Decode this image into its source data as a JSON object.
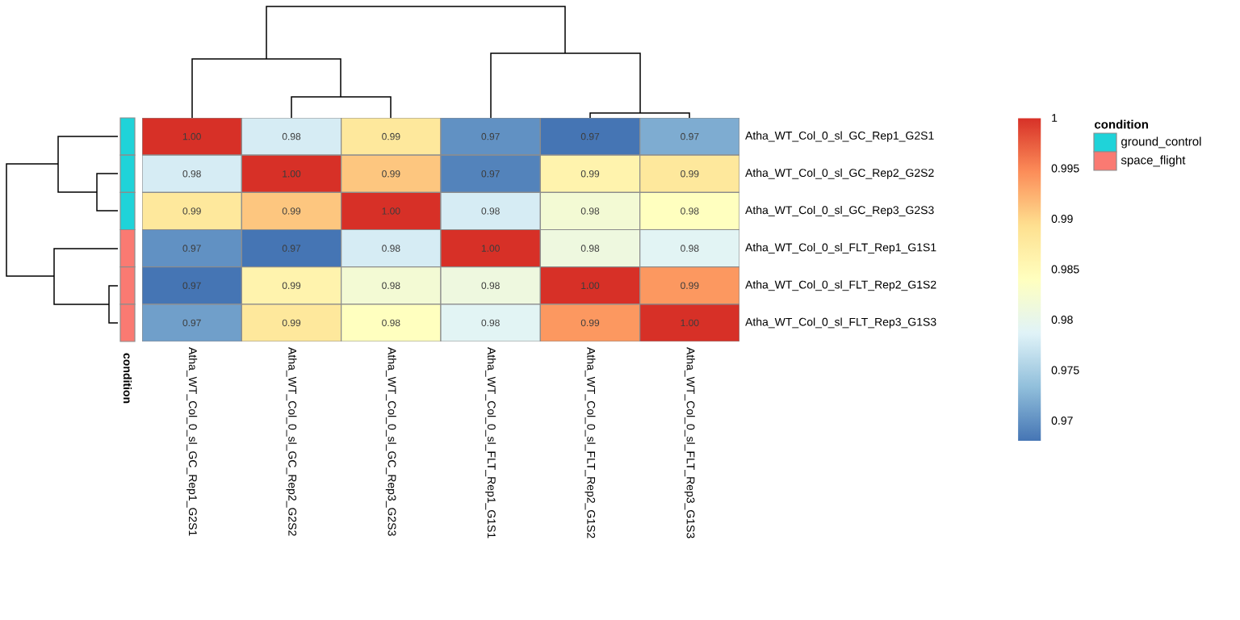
{
  "chart_data": [
    {
      "type": "heatmap",
      "categories": [
        "Atha_WT_Col_0_sl_GC_Rep1_G2S1",
        "Atha_WT_Col_0_sl_GC_Rep2_G2S2",
        "Atha_WT_Col_0_sl_GC_Rep3_G2S3",
        "Atha_WT_Col_0_sl_FLT_Rep1_G1S1",
        "Atha_WT_Col_0_sl_FLT_Rep2_G1S2",
        "Atha_WT_Col_0_sl_FLT_Rep3_G1S3"
      ],
      "y_categories": [
        "Atha_WT_Col_0_sl_GC_Rep1_G2S1",
        "Atha_WT_Col_0_sl_GC_Rep2_G2S2",
        "Atha_WT_Col_0_sl_GC_Rep3_G2S3",
        "Atha_WT_Col_0_sl_FLT_Rep1_G1S1",
        "Atha_WT_Col_0_sl_FLT_Rep2_G1S2",
        "Atha_WT_Col_0_sl_FLT_Rep3_G1S3"
      ],
      "cells": [
        [
          1.0,
          0.978,
          0.988,
          0.97,
          0.968,
          0.972
        ],
        [
          0.978,
          1.0,
          0.991,
          0.969,
          0.986,
          0.988
        ],
        [
          0.988,
          0.991,
          1.0,
          0.978,
          0.982,
          0.984
        ],
        [
          0.97,
          0.968,
          0.978,
          1.0,
          0.981,
          0.979
        ],
        [
          0.968,
          0.986,
          0.982,
          0.981,
          1.0,
          0.994
        ],
        [
          0.971,
          0.988,
          0.984,
          0.979,
          0.994,
          1.0
        ]
      ],
      "cell_labels": [
        [
          "1.00",
          "0.98",
          "0.99",
          "0.97",
          "0.97",
          "0.97"
        ],
        [
          "0.98",
          "1.00",
          "0.99",
          "0.97",
          "0.99",
          "0.99"
        ],
        [
          "0.99",
          "0.99",
          "1.00",
          "0.98",
          "0.98",
          "0.98"
        ],
        [
          "0.97",
          "0.97",
          "0.98",
          "1.00",
          "0.98",
          "0.98"
        ],
        [
          "0.97",
          "0.99",
          "0.98",
          "0.98",
          "1.00",
          "0.99"
        ],
        [
          "0.97",
          "0.99",
          "0.98",
          "0.98",
          "0.99",
          "1.00"
        ]
      ],
      "clim": [
        0.968,
        1
      ],
      "cticks": [
        0.97,
        0.975,
        0.98,
        0.985,
        0.99,
        0.995,
        1
      ]
    },
    {
      "type": "other",
      "title": "condition",
      "legend_title": "condition",
      "legend": "right",
      "colors": [
        "#1fd3d9",
        "#1fd3d9",
        "#1fd3d9",
        "#fa7a72",
        "#fa7a72",
        "#fa7a72"
      ],
      "series": [
        {
          "name": "ground_control",
          "color": "#1fd3d9"
        },
        {
          "name": "space_flight",
          "color": "#fa7a72"
        }
      ]
    }
  ]
}
